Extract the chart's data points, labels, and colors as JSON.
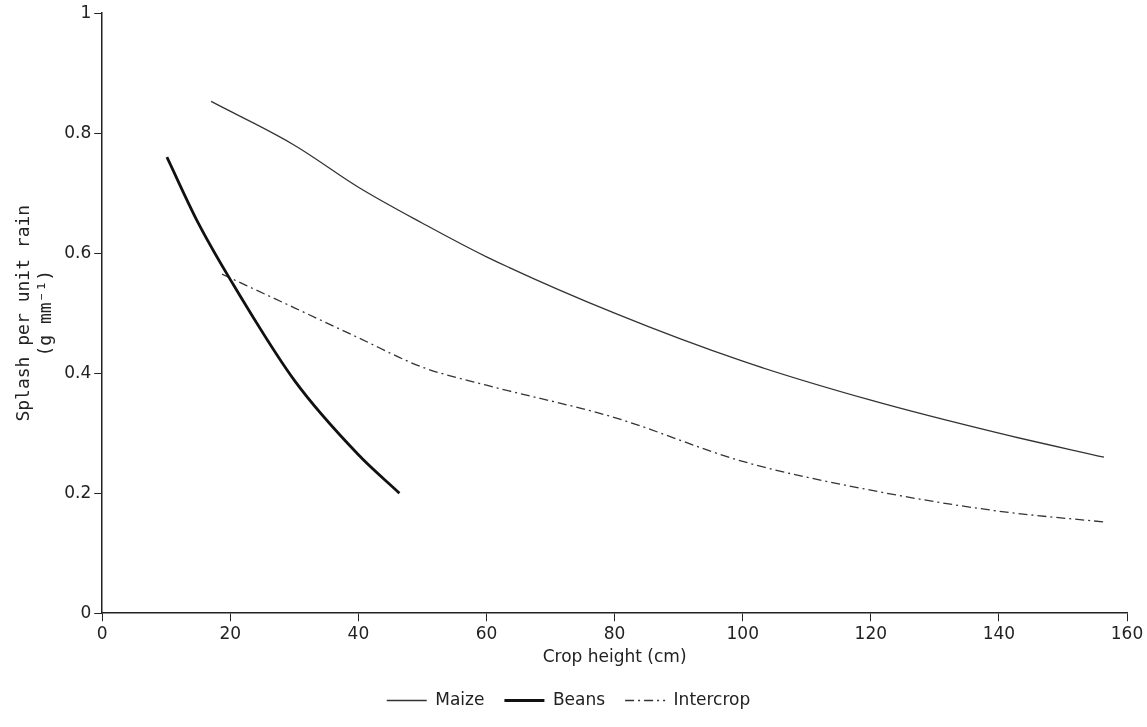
{
  "chart_data": {
    "type": "line",
    "xlabel": "Crop height (cm)",
    "ylabel": "Splash per unit rain\n(g mm⁻¹)",
    "xlim": [
      0,
      160
    ],
    "xticks": [
      0,
      20,
      40,
      60,
      80,
      100,
      120,
      140,
      160
    ],
    "ylim": [
      0,
      1
    ],
    "yticks": [
      0,
      0.2,
      0.4,
      0.6,
      0.8,
      1
    ],
    "grid": false,
    "legend": "bottom",
    "marker": "none",
    "series": [
      {
        "name": "Maize",
        "color": "#333333",
        "line_style": "solid",
        "x": [
          17,
          30,
          40,
          50,
          60,
          80,
          100,
          120,
          140,
          156.4
        ],
        "values": [
          0.853,
          0.78,
          0.71,
          0.65,
          0.594,
          0.5,
          0.42,
          0.355,
          0.3,
          0.26
        ]
      },
      {
        "name": "Beans",
        "color": "#111111",
        "line_style": "solid",
        "x": [
          10.1,
          15,
          20,
          30,
          40,
          46.4
        ],
        "values": [
          0.76,
          0.65,
          0.556,
          0.388,
          0.264,
          0.2
        ]
      },
      {
        "name": "Intercrop",
        "color": "#333333",
        "line_style": "dashed",
        "x": [
          18.7,
          30,
          40,
          50,
          60,
          80,
          100,
          120,
          140,
          156.4
        ],
        "values": [
          0.565,
          0.509,
          0.459,
          0.41,
          0.38,
          0.326,
          0.253,
          0.205,
          0.17,
          0.152
        ]
      }
    ]
  }
}
